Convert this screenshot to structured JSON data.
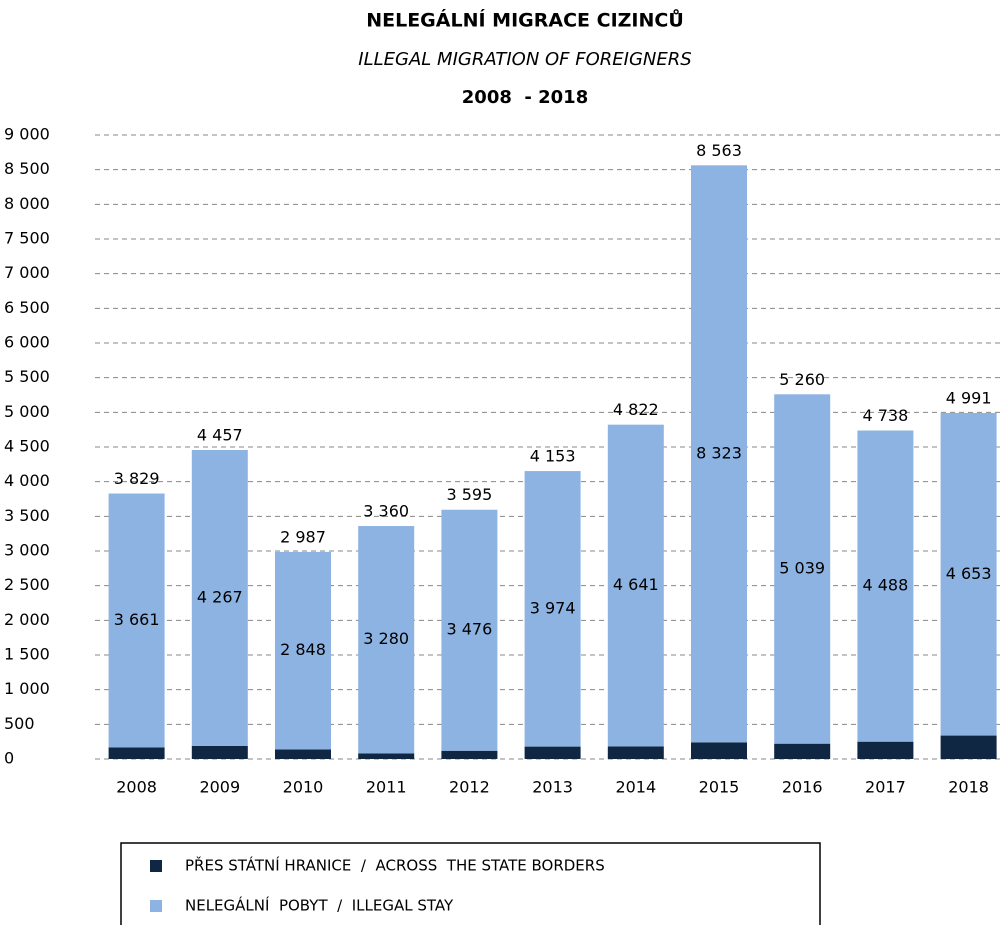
{
  "chart_data": {
    "type": "stacked_bar",
    "title": "NELEGÁLNÍ MIGRACE CIZINCŮ",
    "subtitle": "ILLEGAL MIGRATION OF FOREIGNERS",
    "period": "2008  - 2018",
    "categories": [
      "2008",
      "2009",
      "2010",
      "2011",
      "2012",
      "2013",
      "2014",
      "2015",
      "2016",
      "2017",
      "2018"
    ],
    "series": [
      {
        "name": "PŘES STÁTNÍ HRANICE  /  ACROSS  THE STATE BORDERS",
        "color": "#0f2742",
        "values": [
          168,
          190,
          139,
          80,
          119,
          179,
          181,
          240,
          221,
          250,
          338
        ]
      },
      {
        "name": "NELEGÁLNÍ  POBYT  /  ILLEGAL STAY",
        "color": "#8db3e2",
        "values": [
          3661,
          4267,
          2848,
          3280,
          3476,
          3974,
          4641,
          8323,
          5039,
          4488,
          4653
        ],
        "value_labels": [
          "3 661",
          "4 267",
          "2 848",
          "3 280",
          "3 476",
          "3 974",
          "4 641",
          "8 323",
          "5 039",
          "4 488",
          "4 653"
        ]
      }
    ],
    "totals": {
      "values": [
        3829,
        4457,
        2987,
        3360,
        3595,
        4153,
        4822,
        8563,
        5260,
        4738,
        4991
      ],
      "value_labels": [
        "3 829",
        "4 457",
        "2 987",
        "3 360",
        "3 595",
        "4 153",
        "4 822",
        "8 563",
        "5 260",
        "4 738",
        "4 991"
      ]
    },
    "ylim": [
      0,
      9000
    ],
    "yticks": [
      0,
      500,
      {
        "value": 1000,
        "label": "1 000"
      },
      {
        "value": 1500,
        "label": "1 500"
      },
      {
        "value": 2000,
        "label": "2 000"
      },
      {
        "value": 2500,
        "label": "2 500"
      },
      {
        "value": 3000,
        "label": "3 000"
      },
      {
        "value": 3500,
        "label": "3 500"
      },
      {
        "value": 4000,
        "label": "4 000"
      },
      {
        "value": 4500,
        "label": "4 500"
      },
      {
        "value": 5000,
        "label": "5 000"
      },
      {
        "value": 5500,
        "label": "5 500"
      },
      {
        "value": 6000,
        "label": "6 000"
      },
      {
        "value": 6500,
        "label": "6 500"
      },
      {
        "value": 7000,
        "label": "7 000"
      },
      {
        "value": 7500,
        "label": "7 500"
      },
      {
        "value": 8000,
        "label": "8 000"
      },
      {
        "value": 8500,
        "label": "8 500"
      },
      {
        "value": 9000,
        "label": "9 000"
      }
    ],
    "grid": true
  }
}
